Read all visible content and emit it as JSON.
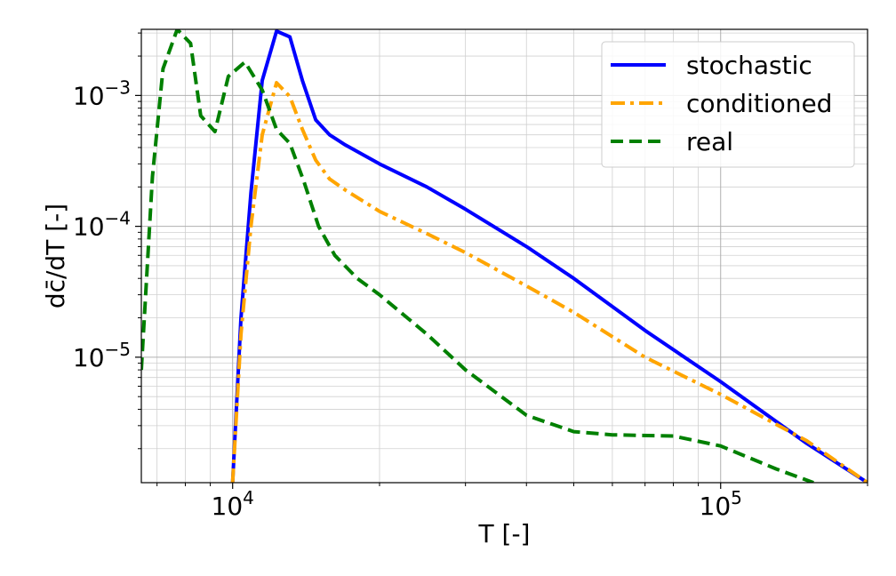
{
  "chart_data": {
    "type": "line",
    "xscale": "log",
    "yscale": "log",
    "xlim": [
      6500,
      200000
    ],
    "ylim": [
      1.1e-06,
      0.0032
    ],
    "grid": "major and minor",
    "legend_placement": "top-right",
    "xlabel": "T [-]",
    "ylabel": "dc̄/dT [-]",
    "x_ticks": [
      {
        "value": 10000,
        "base": "10",
        "exp": "4"
      },
      {
        "value": 100000,
        "base": "10",
        "exp": "5"
      }
    ],
    "y_ticks": [
      {
        "value": 1e-05,
        "base": "10",
        "exp": "−5"
      },
      {
        "value": 0.0001,
        "base": "10",
        "exp": "−4"
      },
      {
        "value": 0.001,
        "base": "10",
        "exp": "−3"
      }
    ],
    "series": [
      {
        "name": "stochastic",
        "color": "#0000ff",
        "dash": "solid",
        "points": [
          [
            10000,
            1.1e-06
          ],
          [
            10400,
            2e-05
          ],
          [
            10900,
            0.00018
          ],
          [
            11500,
            0.0013
          ],
          [
            12300,
            0.0031
          ],
          [
            13100,
            0.0028
          ],
          [
            13900,
            0.0013
          ],
          [
            14800,
            0.00065
          ],
          [
            15800,
            0.0005
          ],
          [
            17000,
            0.00042
          ],
          [
            20000,
            0.0003
          ],
          [
            25000,
            0.0002
          ],
          [
            30000,
            0.000135
          ],
          [
            40000,
            7e-05
          ],
          [
            50000,
            4e-05
          ],
          [
            70000,
            1.6e-05
          ],
          [
            100000,
            6.5e-06
          ],
          [
            150000,
            2.2e-06
          ],
          [
            200000,
            1.1e-06
          ]
        ]
      },
      {
        "name": "conditioned",
        "color": "#ffa500",
        "dash": "dashdot",
        "points": [
          [
            10000,
            1.1e-06
          ],
          [
            10400,
            1.5e-05
          ],
          [
            10900,
            0.0001
          ],
          [
            11500,
            0.0005
          ],
          [
            12300,
            0.00125
          ],
          [
            13100,
            0.00098
          ],
          [
            13900,
            0.00055
          ],
          [
            14800,
            0.00032
          ],
          [
            15800,
            0.00023
          ],
          [
            17000,
            0.00019
          ],
          [
            20000,
            0.00013
          ],
          [
            25000,
            8.8e-05
          ],
          [
            30000,
            6.3e-05
          ],
          [
            40000,
            3.5e-05
          ],
          [
            50000,
            2.2e-05
          ],
          [
            70000,
            1e-05
          ],
          [
            100000,
            5.2e-06
          ],
          [
            150000,
            2.3e-06
          ],
          [
            200000,
            1.1e-06
          ]
        ]
      },
      {
        "name": "real",
        "color": "#008000",
        "dash": "dashed",
        "points": [
          [
            6500,
            8e-06
          ],
          [
            6850,
            0.00024
          ],
          [
            7200,
            0.0016
          ],
          [
            7700,
            0.0032
          ],
          [
            8200,
            0.0025
          ],
          [
            8600,
            0.0007
          ],
          [
            9200,
            0.00053
          ],
          [
            9800,
            0.0014
          ],
          [
            10600,
            0.0018
          ],
          [
            11500,
            0.0011
          ],
          [
            12300,
            0.00055
          ],
          [
            13100,
            0.00043
          ],
          [
            14000,
            0.00022
          ],
          [
            15000,
            0.0001
          ],
          [
            16200,
            6e-05
          ],
          [
            18000,
            4e-05
          ],
          [
            20000,
            3e-05
          ],
          [
            25000,
            1.5e-05
          ],
          [
            30000,
            8e-06
          ],
          [
            40000,
            3.6e-06
          ],
          [
            50000,
            2.7e-06
          ],
          [
            60000,
            2.55e-06
          ],
          [
            80000,
            2.5e-06
          ],
          [
            100000,
            2.1e-06
          ],
          [
            130000,
            1.4e-06
          ],
          [
            155000,
            1.1e-06
          ]
        ]
      }
    ]
  }
}
